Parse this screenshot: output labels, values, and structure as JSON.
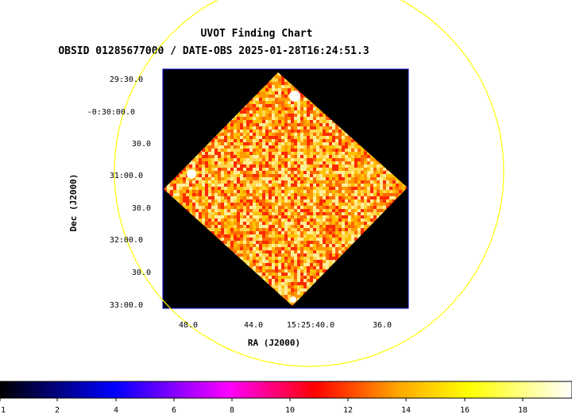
{
  "chart_data": {
    "type": "heatmap",
    "title": "UVOT Finding Chart",
    "subtitle": "OBSID 01285677000 / DATE-OBS 2025-01-28T16:24:51.3",
    "xlabel": "RA (J2000)",
    "ylabel": "Dec (J2000)",
    "x_ticks": [
      "48.0",
      "44.0",
      "15:25:40.0",
      "36.0"
    ],
    "y_ticks": [
      "29:30.0",
      "-0:30:00.0",
      "30.0",
      "31:00.0",
      "30.0",
      "32:00.0",
      "30.0",
      "33:00.0"
    ],
    "colorbar": {
      "ticks": [
        "1",
        "2",
        "4",
        "6",
        "8",
        "10",
        "12",
        "14",
        "16",
        "18"
      ],
      "colors": [
        "#000000",
        "#0000ff",
        "#ff00ff",
        "#ff0000",
        "#ffaa00",
        "#ffff00",
        "#ffffff"
      ]
    },
    "image_colors": [
      "#ff2a00",
      "#ff6a00",
      "#ff9a00",
      "#ffc000",
      "#ffd84d",
      "#ffee99"
    ],
    "overlay": {
      "shape": "circle",
      "color": "#ffff00"
    },
    "bright_sources": 3
  }
}
